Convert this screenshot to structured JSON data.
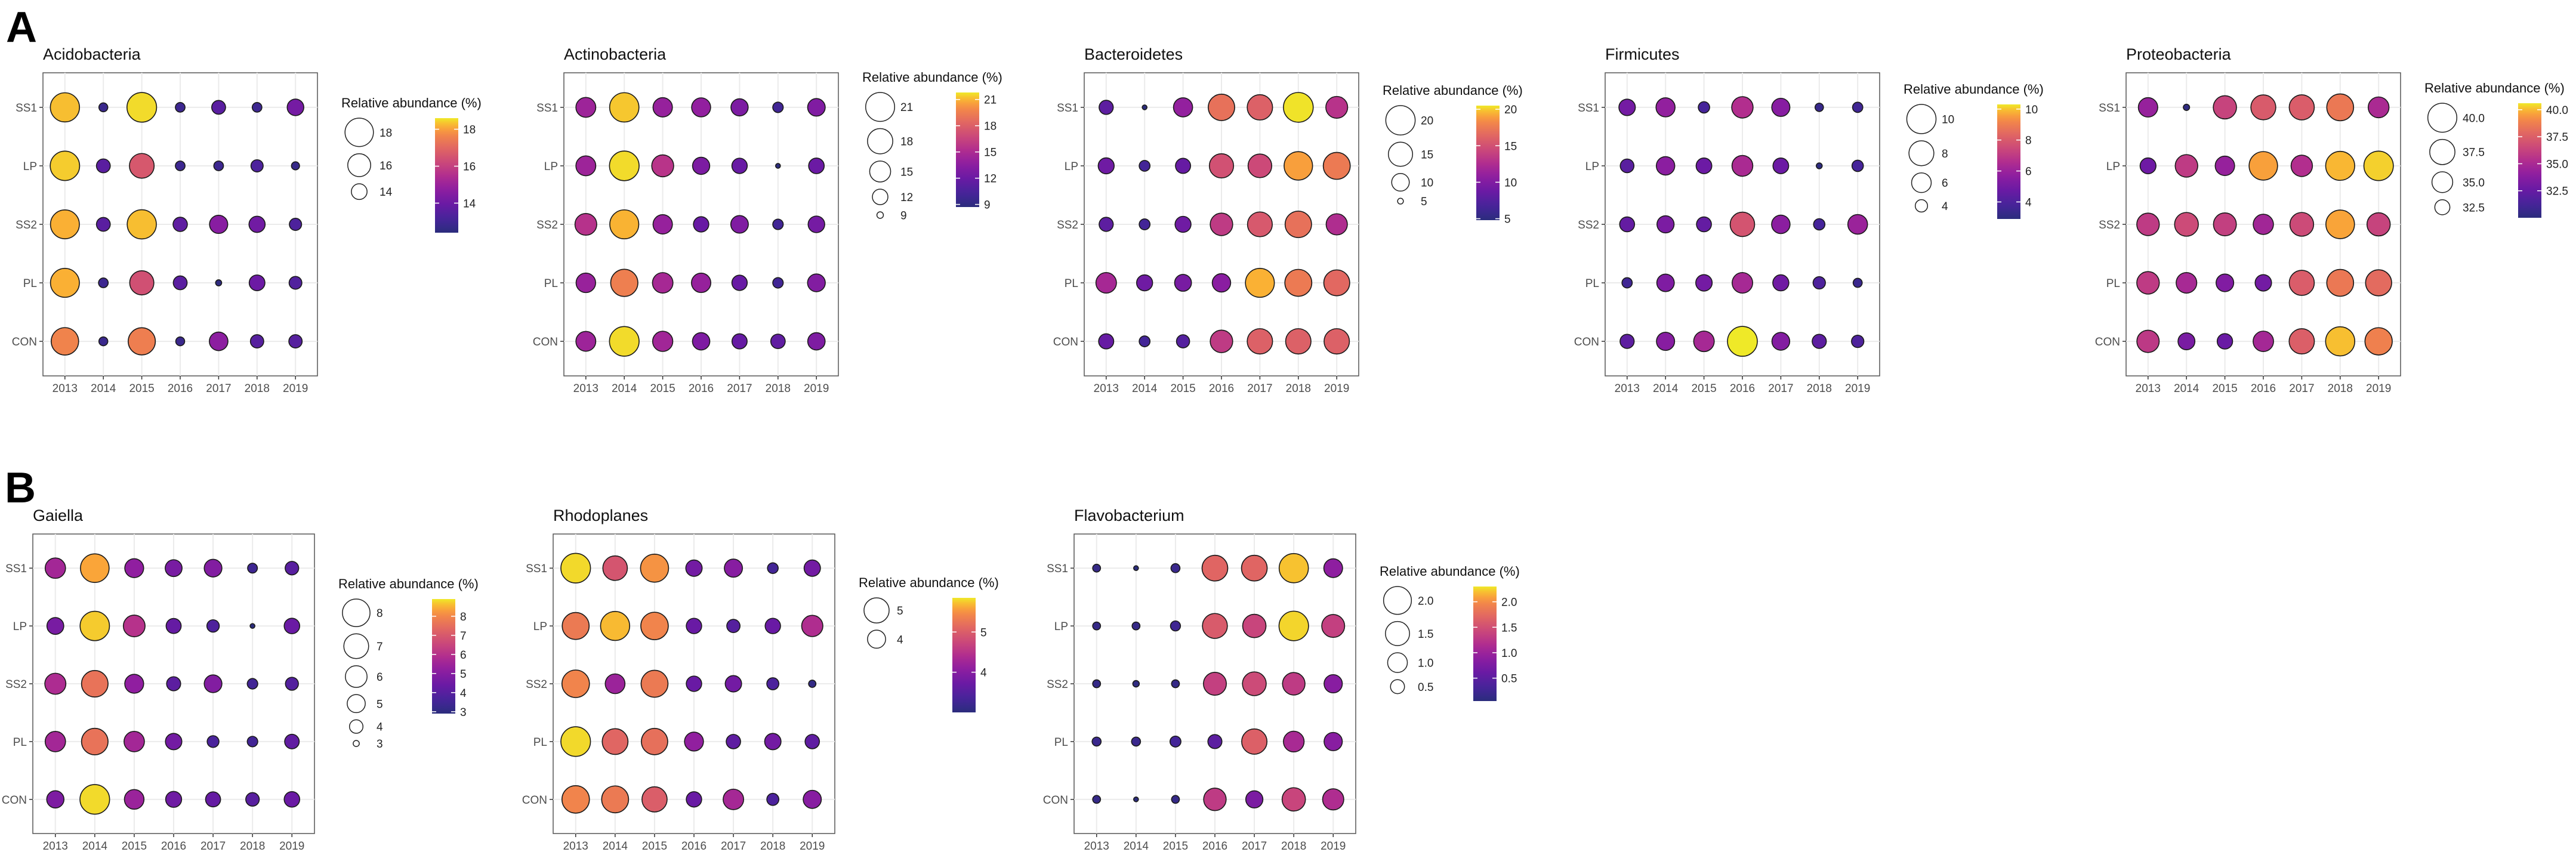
{
  "panel_labels": [
    "A",
    "B"
  ],
  "chart_data": [
    {
      "type": "scatter",
      "group": "A",
      "title": "Acidobacteria",
      "x": [
        "2013",
        "2014",
        "2015",
        "2016",
        "2017",
        "2018",
        "2019"
      ],
      "y": [
        "SS1",
        "LP",
        "SS2",
        "PL",
        "CON"
      ],
      "values": [
        [
          18.3,
          12.8,
          18.5,
          12.9,
          13.6,
          12.9,
          14.2
        ],
        [
          18.4,
          13.6,
          16.6,
          12.9,
          12.9,
          13.3,
          12.7
        ],
        [
          18.2,
          13.6,
          18.3,
          13.7,
          14.6,
          14.1,
          13.3
        ],
        [
          18.2,
          12.9,
          16.4,
          13.6,
          12.5,
          14.0,
          13.4
        ],
        [
          17.6,
          12.8,
          17.5,
          12.8,
          14.7,
          13.5,
          13.5
        ]
      ],
      "legend_title": "Relative abundance (%)",
      "size_breaks": [
        "18",
        "16",
        "14"
      ],
      "color_breaks": [
        "18",
        "16",
        "14"
      ],
      "range": [
        12.4,
        18.6
      ],
      "xlabel": "",
      "ylabel": ""
    },
    {
      "type": "scatter",
      "group": "A",
      "title": "Actinobacteria",
      "x": [
        "2013",
        "2014",
        "2015",
        "2016",
        "2017",
        "2018",
        "2019"
      ],
      "y": [
        "SS1",
        "LP",
        "SS2",
        "PL",
        "CON"
      ],
      "values": [
        [
          14.3,
          21.3,
          14.0,
          13.8,
          12.8,
          10.0,
          13.0
        ],
        [
          14.3,
          21.6,
          15.6,
          12.8,
          11.9,
          8.7,
          12.0
        ],
        [
          15.5,
          21.0,
          14.0,
          11.9,
          13.0,
          10.0,
          12.5
        ],
        [
          14.1,
          19.5,
          14.7,
          14.0,
          11.9,
          10.0,
          13.1
        ],
        [
          14.3,
          21.6,
          14.5,
          12.9,
          11.8,
          11.5,
          12.9
        ]
      ],
      "legend_title": "Relative abundance (%)",
      "size_breaks": [
        "21",
        "18",
        "15",
        "12",
        "9"
      ],
      "color_breaks": [
        "21",
        "18",
        "15",
        "12",
        "9"
      ],
      "range": [
        8.7,
        21.8
      ],
      "xlabel": "",
      "ylabel": ""
    },
    {
      "type": "scatter",
      "group": "A",
      "title": "Bacteroidetes",
      "x": [
        "2013",
        "2014",
        "2015",
        "2016",
        "2017",
        "2018",
        "2019"
      ],
      "y": [
        "SS1",
        "LP",
        "SS2",
        "PL",
        "CON"
      ],
      "values": [
        [
          8.0,
          4.8,
          11.0,
          17.0,
          16.0,
          20.4,
          13.0
        ],
        [
          9.0,
          6.5,
          8.5,
          15.0,
          14.5,
          19.0,
          17.5
        ],
        [
          8.0,
          6.5,
          9.0,
          13.5,
          15.5,
          17.0,
          12.5
        ],
        [
          12.0,
          9.0,
          9.5,
          10.5,
          19.5,
          17.5,
          16.5
        ],
        [
          8.5,
          6.5,
          7.5,
          13.5,
          16.0,
          16.0,
          16.0
        ]
      ],
      "legend_title": "Relative abundance (%)",
      "size_breaks": [
        "20",
        "15",
        "10",
        "5"
      ],
      "color_breaks": [
        "20",
        "15",
        "10",
        "5"
      ],
      "range": [
        4.8,
        20.5
      ],
      "xlabel": "",
      "ylabel": ""
    },
    {
      "type": "scatter",
      "group": "A",
      "title": "Firmicutes",
      "x": [
        "2013",
        "2014",
        "2015",
        "2016",
        "2017",
        "2018",
        "2019"
      ],
      "y": [
        "SS1",
        "LP",
        "SS2",
        "PL",
        "CON"
      ],
      "values": [
        [
          5.0,
          5.8,
          3.8,
          6.6,
          5.5,
          3.3,
          3.6
        ],
        [
          4.3,
          5.6,
          4.8,
          6.4,
          4.8,
          3.0,
          3.8
        ],
        [
          4.6,
          5.2,
          4.6,
          7.8,
          5.6,
          3.8,
          6.0
        ],
        [
          3.6,
          5.3,
          5.0,
          6.3,
          4.9,
          4.0,
          3.4
        ],
        [
          4.4,
          5.5,
          6.3,
          10.3,
          5.4,
          4.4,
          4.0
        ]
      ],
      "legend_title": "Relative abundance (%)",
      "size_breaks": [
        "10",
        "8",
        "6",
        "4"
      ],
      "color_breaks": [
        "10",
        "8",
        "6",
        "4"
      ],
      "range": [
        2.9,
        10.3
      ],
      "xlabel": "",
      "ylabel": ""
    },
    {
      "type": "scatter",
      "group": "A",
      "title": "Proteobacteria",
      "x": [
        "2013",
        "2014",
        "2015",
        "2016",
        "2017",
        "2018",
        "2019"
      ],
      "y": [
        "SS1",
        "LP",
        "SS2",
        "PL",
        "CON"
      ],
      "values": [
        [
          34.3,
          30.2,
          36.3,
          37.3,
          37.4,
          38.5,
          35.0
        ],
        [
          32.8,
          35.9,
          34.3,
          39.6,
          35.3,
          40.0,
          40.3
        ],
        [
          35.9,
          36.6,
          36.1,
          34.7,
          36.6,
          39.7,
          36.3
        ],
        [
          35.9,
          34.9,
          33.5,
          33.0,
          37.4,
          38.5,
          38.0
        ],
        [
          35.8,
          33.2,
          32.6,
          34.8,
          37.5,
          40.1,
          38.8
        ]
      ],
      "legend_title": "Relative abundance (%)",
      "size_breaks": [
        "40.0",
        "37.5",
        "35.0",
        "32.5"
      ],
      "color_breaks": [
        "40.0",
        "37.5",
        "35.0",
        "32.5"
      ],
      "range": [
        30.0,
        40.6
      ],
      "xlabel": "",
      "ylabel": ""
    },
    {
      "type": "scatter",
      "group": "B",
      "title": "Gaiella",
      "x": [
        "2013",
        "2014",
        "2015",
        "2016",
        "2017",
        "2018",
        "2019"
      ],
      "y": [
        "SS1",
        "LP",
        "SS2",
        "PL",
        "CON"
      ],
      "values": [
        [
          5.6,
          8.4,
          5.2,
          4.7,
          4.9,
          3.4,
          4.0
        ],
        [
          4.7,
          8.7,
          6.0,
          4.3,
          3.8,
          2.9,
          4.4
        ],
        [
          5.8,
          7.6,
          5.2,
          4.1,
          4.9,
          3.5,
          3.9
        ],
        [
          5.6,
          7.6,
          5.6,
          4.6,
          3.7,
          3.5,
          4.2
        ],
        [
          4.8,
          8.8,
          5.4,
          4.5,
          4.3,
          4.0,
          4.4
        ]
      ],
      "legend_title": "Relative abundance (%)",
      "size_breaks": [
        "8",
        "7",
        "6",
        "5",
        "4",
        "3"
      ],
      "color_breaks": [
        "8",
        "7",
        "6",
        "5",
        "4",
        "3"
      ],
      "range": [
        2.9,
        8.9
      ],
      "xlabel": "",
      "ylabel": ""
    },
    {
      "type": "scatter",
      "group": "B",
      "title": "Rhodoplanes",
      "x": [
        "2013",
        "2014",
        "2015",
        "2016",
        "2017",
        "2018",
        "2019"
      ],
      "y": [
        "SS1",
        "LP",
        "SS2",
        "PL",
        "CON"
      ],
      "values": [
        [
          5.8,
          4.9,
          5.5,
          3.8,
          4.0,
          3.3,
          3.8
        ],
        [
          5.3,
          5.7,
          5.4,
          3.7,
          3.5,
          3.7,
          4.4
        ],
        [
          5.4,
          4.2,
          5.3,
          3.7,
          3.8,
          3.4,
          3.1
        ],
        [
          5.8,
          5.1,
          5.2,
          4.1,
          3.6,
          3.8,
          3.6
        ],
        [
          5.4,
          5.3,
          5.0,
          3.7,
          4.3,
          3.4,
          4.0
        ]
      ],
      "legend_title": "Relative abundance (%)",
      "size_breaks": [
        "5",
        "4"
      ],
      "color_breaks": [
        "5",
        "4"
      ],
      "range": [
        3.0,
        5.85
      ],
      "xlabel": "",
      "ylabel": ""
    },
    {
      "type": "scatter",
      "group": "B",
      "title": "Flavobacterium",
      "x": [
        "2013",
        "2014",
        "2015",
        "2016",
        "2017",
        "2018",
        "2019"
      ],
      "y": [
        "SS1",
        "LP",
        "SS2",
        "PL",
        "CON"
      ],
      "values": [
        [
          0.15,
          0.05,
          0.2,
          1.7,
          1.7,
          2.2,
          0.9
        ],
        [
          0.15,
          0.15,
          0.25,
          1.6,
          1.4,
          2.25,
          1.35
        ],
        [
          0.15,
          0.1,
          0.15,
          1.35,
          1.45,
          1.3,
          0.85
        ],
        [
          0.2,
          0.2,
          0.3,
          0.5,
          1.65,
          1.1,
          0.85
        ],
        [
          0.15,
          0.05,
          0.15,
          1.3,
          0.75,
          1.4,
          1.15
        ]
      ],
      "legend_title": "Relative abundance (%)",
      "size_breaks": [
        "2.0",
        "1.5",
        "1.0",
        "0.5"
      ],
      "color_breaks": [
        "2.0",
        "1.5",
        "1.0",
        "0.5"
      ],
      "range": [
        0.05,
        2.3
      ],
      "xlabel": "",
      "ylabel": ""
    }
  ]
}
